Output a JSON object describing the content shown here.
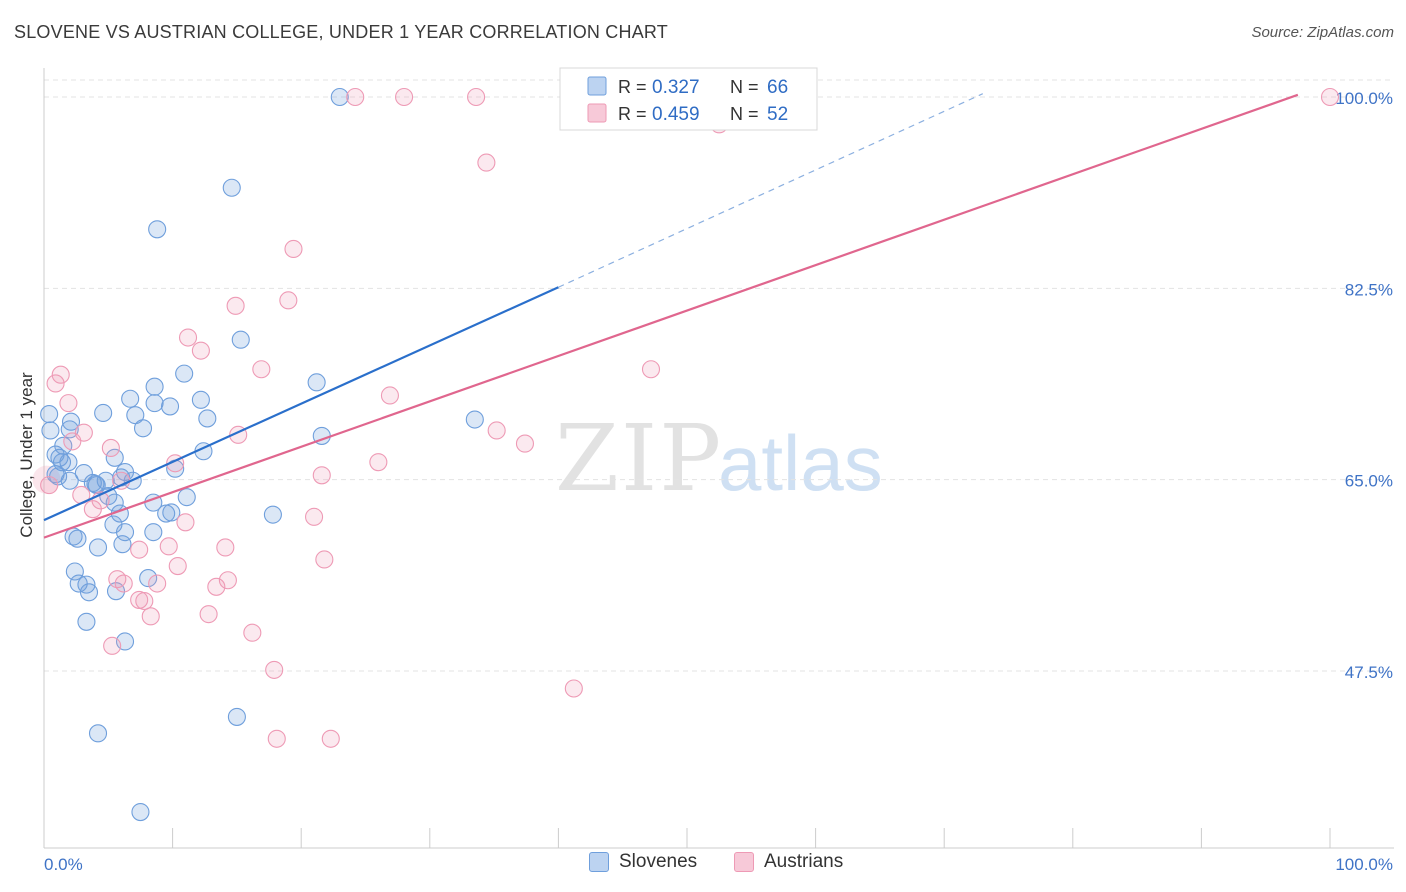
{
  "chart_data": {
    "type": "scatter",
    "title": "SLOVENE VS AUSTRIAN COLLEGE, UNDER 1 YEAR CORRELATION CHART",
    "source": "Source: ZipAtlas.com",
    "ylabel": "College, Under 1 year",
    "xlabel": "",
    "xlim": [
      0,
      100
    ],
    "ylim": [
      32.5,
      102.0
    ],
    "x_tick_labels": {
      "left": "0.0%",
      "right": "100.0%"
    },
    "y_ticks": [
      {
        "value": 100.0,
        "label": "100.0%"
      },
      {
        "value": 82.5,
        "label": "82.5%"
      },
      {
        "value": 65.0,
        "label": "65.0%"
      },
      {
        "value": 47.5,
        "label": "47.5%"
      }
    ],
    "grid": true,
    "legend": {
      "placement": "top-center",
      "entries": [
        {
          "r_label": "R =",
          "r_value": "0.327",
          "n_label": "N =",
          "n_value": "66"
        },
        {
          "r_label": "R =",
          "r_value": "0.459",
          "n_label": "N =",
          "n_value": "52"
        }
      ]
    },
    "watermark": {
      "zip": "ZIP",
      "atlas": "atlas"
    },
    "series": [
      {
        "name": "Slovenes",
        "color": "#6f9fdc",
        "line_color": "#2a6fcb",
        "trend": {
          "x0": 0,
          "y0": 61.3,
          "x1": 40,
          "y1": 82.6,
          "dash_x1": 73,
          "dash_y1": 100.3
        },
        "points": [
          [
            23.0,
            100.0
          ],
          [
            14.6,
            91.7
          ],
          [
            8.8,
            87.9
          ],
          [
            15.3,
            77.8
          ],
          [
            8.6,
            73.5
          ],
          [
            10.9,
            74.7
          ],
          [
            21.2,
            73.9
          ],
          [
            6.7,
            72.4
          ],
          [
            8.6,
            72.0
          ],
          [
            12.2,
            72.3
          ],
          [
            9.8,
            71.7
          ],
          [
            0.4,
            71.0
          ],
          [
            4.6,
            71.1
          ],
          [
            7.1,
            70.9
          ],
          [
            12.7,
            70.6
          ],
          [
            2.1,
            70.3
          ],
          [
            7.7,
            69.7
          ],
          [
            0.5,
            69.5
          ],
          [
            2.0,
            69.6
          ],
          [
            21.6,
            69.0
          ],
          [
            33.5,
            70.5
          ],
          [
            1.5,
            68.1
          ],
          [
            12.4,
            67.6
          ],
          [
            0.9,
            67.3
          ],
          [
            5.5,
            67.0
          ],
          [
            1.4,
            66.6
          ],
          [
            1.9,
            66.6
          ],
          [
            6.3,
            65.7
          ],
          [
            0.9,
            65.5
          ],
          [
            3.1,
            65.6
          ],
          [
            10.2,
            66.0
          ],
          [
            1.1,
            65.3
          ],
          [
            2.0,
            64.9
          ],
          [
            4.8,
            64.9
          ],
          [
            6.9,
            64.9
          ],
          [
            3.8,
            64.7
          ],
          [
            4.1,
            64.5
          ],
          [
            11.1,
            63.4
          ],
          [
            8.5,
            62.9
          ],
          [
            5.5,
            62.9
          ],
          [
            17.8,
            61.8
          ],
          [
            9.5,
            61.9
          ],
          [
            5.9,
            61.9
          ],
          [
            5.4,
            60.9
          ],
          [
            6.3,
            60.2
          ],
          [
            8.5,
            60.2
          ],
          [
            2.3,
            59.8
          ],
          [
            2.6,
            59.6
          ],
          [
            4.2,
            58.8
          ],
          [
            6.1,
            59.1
          ],
          [
            2.4,
            56.6
          ],
          [
            8.1,
            56.0
          ],
          [
            2.7,
            55.5
          ],
          [
            3.3,
            55.4
          ],
          [
            3.5,
            54.7
          ],
          [
            5.6,
            54.8
          ],
          [
            3.3,
            52.0
          ],
          [
            6.3,
            50.2
          ],
          [
            15.0,
            43.3
          ],
          [
            4.2,
            41.8
          ],
          [
            7.5,
            34.6
          ],
          [
            6.0,
            65.2
          ],
          [
            4.0,
            64.6
          ],
          [
            1.2,
            67.0
          ],
          [
            9.9,
            62.0
          ],
          [
            5.0,
            63.5
          ]
        ]
      },
      {
        "name": "Austrians",
        "color": "#ee9ab5",
        "line_color": "#e0668e",
        "trend": {
          "x0": 0,
          "y0": 59.7,
          "x1": 97.5,
          "y1": 100.2
        },
        "points": [
          [
            100.0,
            100.0
          ],
          [
            24.2,
            100.0
          ],
          [
            28.0,
            100.0
          ],
          [
            33.6,
            100.0
          ],
          [
            52.5,
            97.5
          ],
          [
            34.4,
            94.0
          ],
          [
            19.4,
            86.1
          ],
          [
            14.9,
            80.9
          ],
          [
            19.0,
            81.4
          ],
          [
            11.2,
            78.0
          ],
          [
            12.2,
            76.8
          ],
          [
            16.9,
            75.1
          ],
          [
            47.2,
            75.1
          ],
          [
            1.3,
            74.6
          ],
          [
            0.9,
            73.8
          ],
          [
            26.9,
            72.7
          ],
          [
            1.9,
            72.0
          ],
          [
            35.2,
            69.5
          ],
          [
            3.1,
            69.3
          ],
          [
            15.1,
            69.1
          ],
          [
            37.4,
            68.3
          ],
          [
            2.2,
            68.5
          ],
          [
            5.2,
            67.9
          ],
          [
            10.2,
            66.5
          ],
          [
            26.0,
            66.6
          ],
          [
            21.6,
            65.4
          ],
          [
            0.4,
            64.5
          ],
          [
            6.0,
            64.9
          ],
          [
            2.9,
            63.6
          ],
          [
            4.4,
            63.1
          ],
          [
            3.8,
            62.3
          ],
          [
            21.0,
            61.6
          ],
          [
            11.0,
            61.1
          ],
          [
            14.1,
            58.8
          ],
          [
            9.7,
            58.9
          ],
          [
            7.4,
            58.6
          ],
          [
            21.8,
            57.7
          ],
          [
            10.4,
            57.1
          ],
          [
            14.3,
            55.8
          ],
          [
            5.7,
            55.9
          ],
          [
            13.4,
            55.2
          ],
          [
            8.8,
            55.5
          ],
          [
            6.2,
            55.5
          ],
          [
            7.4,
            54.0
          ],
          [
            7.8,
            53.9
          ],
          [
            8.3,
            52.5
          ],
          [
            12.8,
            52.7
          ],
          [
            16.2,
            51.0
          ],
          [
            5.3,
            49.8
          ],
          [
            17.9,
            47.6
          ],
          [
            41.2,
            45.9
          ],
          [
            18.1,
            41.3
          ]
        ],
        "extra_points": [
          [
            22.3,
            41.3
          ]
        ]
      }
    ]
  },
  "bottom_legend": [
    "Slovenes",
    "Austrians"
  ]
}
